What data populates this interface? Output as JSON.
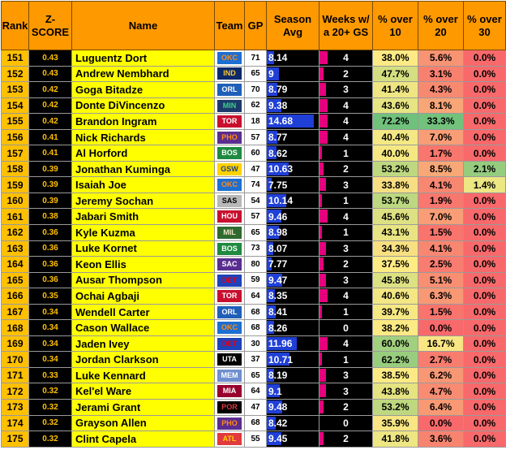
{
  "headers": {
    "rank": "Rank",
    "z": "Z-SCORE",
    "name": "Name",
    "team": "Team",
    "gp": "GP",
    "season_avg": "Season Avg",
    "weeks": "Weeks w/ a 20+ GS",
    "over10": "% over 10",
    "over20": "% over 20",
    "over30": "% over 30"
  },
  "colors": {
    "header_bg": "#ff9900",
    "rank_bg": "#ffc000",
    "name_bg": "#ffff00",
    "z_text": "#ffc000",
    "avg_bar": "#1f3fd6",
    "weeks_mark": "#e6007e"
  },
  "rows": [
    {
      "rank": "151",
      "z": "0.43",
      "name": "Luguentz Dort",
      "team": "OKC",
      "gp": "71",
      "avg": "8.14",
      "weeks": "4",
      "o10": "38.0%",
      "o20": "5.6%",
      "o30": "0.0%"
    },
    {
      "rank": "152",
      "z": "0.43",
      "name": "Andrew Nembhard",
      "team": "IND",
      "gp": "65",
      "avg": "9",
      "weeks": "2",
      "o10": "47.7%",
      "o20": "3.1%",
      "o30": "0.0%"
    },
    {
      "rank": "153",
      "z": "0.42",
      "name": "Goga Bitadze",
      "team": "ORL",
      "gp": "70",
      "avg": "8.79",
      "weeks": "3",
      "o10": "41.4%",
      "o20": "4.3%",
      "o30": "0.0%"
    },
    {
      "rank": "154",
      "z": "0.42",
      "name": "Donte DiVincenzo",
      "team": "MIN",
      "gp": "62",
      "avg": "9.38",
      "weeks": "4",
      "o10": "43.6%",
      "o20": "8.1%",
      "o30": "0.0%"
    },
    {
      "rank": "155",
      "z": "0.42",
      "name": "Brandon Ingram",
      "team": "TOR",
      "gp": "18",
      "avg": "14.68",
      "weeks": "4",
      "o10": "72.2%",
      "o20": "33.3%",
      "o30": "0.0%"
    },
    {
      "rank": "156",
      "z": "0.41",
      "name": "Nick Richards",
      "team": "PHO",
      "gp": "57",
      "avg": "8.77",
      "weeks": "4",
      "o10": "40.4%",
      "o20": "7.0%",
      "o30": "0.0%"
    },
    {
      "rank": "157",
      "z": "0.41",
      "name": "Al Horford",
      "team": "BOS",
      "gp": "60",
      "avg": "8.62",
      "weeks": "1",
      "o10": "40.0%",
      "o20": "1.7%",
      "o30": "0.0%"
    },
    {
      "rank": "158",
      "z": "0.39",
      "name": "Jonathan Kuminga",
      "team": "GSW",
      "gp": "47",
      "avg": "10.63",
      "weeks": "2",
      "o10": "53.2%",
      "o20": "8.5%",
      "o30": "2.1%"
    },
    {
      "rank": "159",
      "z": "0.39",
      "name": "Isaiah Joe",
      "team": "OKC",
      "gp": "74",
      "avg": "7.75",
      "weeks": "3",
      "o10": "33.8%",
      "o20": "4.1%",
      "o30": "1.4%"
    },
    {
      "rank": "160",
      "z": "0.39",
      "name": "Jeremy Sochan",
      "team": "SAS",
      "gp": "54",
      "avg": "10.14",
      "weeks": "1",
      "o10": "53.7%",
      "o20": "1.9%",
      "o30": "0.0%"
    },
    {
      "rank": "161",
      "z": "0.38",
      "name": "Jabari Smith",
      "team": "HOU",
      "gp": "57",
      "avg": "9.46",
      "weeks": "4",
      "o10": "45.6%",
      "o20": "7.0%",
      "o30": "0.0%"
    },
    {
      "rank": "162",
      "z": "0.36",
      "name": "Kyle Kuzma",
      "team": "MIL",
      "gp": "65",
      "avg": "8.98",
      "weeks": "1",
      "o10": "43.1%",
      "o20": "1.5%",
      "o30": "0.0%"
    },
    {
      "rank": "163",
      "z": "0.36",
      "name": "Luke Kornet",
      "team": "BOS",
      "gp": "73",
      "avg": "8.07",
      "weeks": "3",
      "o10": "34.3%",
      "o20": "4.1%",
      "o30": "0.0%"
    },
    {
      "rank": "164",
      "z": "0.36",
      "name": "Keon Ellis",
      "team": "SAC",
      "gp": "80",
      "avg": "7.77",
      "weeks": "2",
      "o10": "37.5%",
      "o20": "2.5%",
      "o30": "0.0%"
    },
    {
      "rank": "165",
      "z": "0.36",
      "name": "Ausar Thompson",
      "team": "DET",
      "gp": "59",
      "avg": "9.47",
      "weeks": "3",
      "o10": "45.8%",
      "o20": "5.1%",
      "o30": "0.0%"
    },
    {
      "rank": "166",
      "z": "0.35",
      "name": "Ochai Agbaji",
      "team": "TOR",
      "gp": "64",
      "avg": "8.35",
      "weeks": "4",
      "o10": "40.6%",
      "o20": "6.3%",
      "o30": "0.0%"
    },
    {
      "rank": "167",
      "z": "0.34",
      "name": "Wendell Carter",
      "team": "ORL",
      "gp": "68",
      "avg": "8.41",
      "weeks": "1",
      "o10": "39.7%",
      "o20": "1.5%",
      "o30": "0.0%"
    },
    {
      "rank": "168",
      "z": "0.34",
      "name": "Cason Wallace",
      "team": "OKC",
      "gp": "68",
      "avg": "8.26",
      "weeks": "0",
      "o10": "38.2%",
      "o20": "0.0%",
      "o30": "0.0%"
    },
    {
      "rank": "169",
      "z": "0.34",
      "name": "Jaden Ivey",
      "team": "DET",
      "gp": "30",
      "avg": "11.96",
      "weeks": "4",
      "o10": "60.0%",
      "o20": "16.7%",
      "o30": "0.0%"
    },
    {
      "rank": "170",
      "z": "0.34",
      "name": "Jordan Clarkson",
      "team": "UTA",
      "gp": "37",
      "avg": "10.71",
      "weeks": "1",
      "o10": "62.2%",
      "o20": "2.7%",
      "o30": "0.0%"
    },
    {
      "rank": "171",
      "z": "0.33",
      "name": "Luke Kennard",
      "team": "MEM",
      "gp": "65",
      "avg": "8.19",
      "weeks": "3",
      "o10": "38.5%",
      "o20": "6.2%",
      "o30": "0.0%"
    },
    {
      "rank": "172",
      "z": "0.32",
      "name": "Kel'el Ware",
      "team": "MIA",
      "gp": "64",
      "avg": "9.1",
      "weeks": "3",
      "o10": "43.8%",
      "o20": "4.7%",
      "o30": "0.0%"
    },
    {
      "rank": "173",
      "z": "0.32",
      "name": "Jerami Grant",
      "team": "POR",
      "gp": "47",
      "avg": "9.48",
      "weeks": "2",
      "o10": "53.2%",
      "o20": "6.4%",
      "o30": "0.0%"
    },
    {
      "rank": "174",
      "z": "0.32",
      "name": "Grayson Allen",
      "team": "PHO",
      "gp": "68",
      "avg": "8.42",
      "weeks": "0",
      "o10": "35.9%",
      "o20": "0.0%",
      "o30": "0.0%"
    },
    {
      "rank": "175",
      "z": "0.32",
      "name": "Clint Capela",
      "team": "ATL",
      "gp": "55",
      "avg": "9.45",
      "weeks": "2",
      "o10": "41.8%",
      "o20": "3.6%",
      "o30": "0.0%"
    }
  ],
  "team_colors": {
    "OKC": {
      "bg": "#1d6fd1",
      "fg": "#ff8c1a"
    },
    "IND": {
      "bg": "#0b2a6b",
      "fg": "#ffc633"
    },
    "ORL": {
      "bg": "#1f5fb8",
      "fg": "#ffffff"
    },
    "MIN": {
      "bg": "#1b3a6b",
      "fg": "#3fd08a"
    },
    "TOR": {
      "bg": "#c8102e",
      "fg": "#ffffff"
    },
    "PHO": {
      "bg": "#5b2d8e",
      "fg": "#ff8c1a"
    },
    "BOS": {
      "bg": "#1f8a3f",
      "fg": "#ffffff"
    },
    "GSW": {
      "bg": "#ffd200",
      "fg": "#1d428a"
    },
    "SAS": {
      "bg": "#b8b8b8",
      "fg": "#000000"
    },
    "HOU": {
      "bg": "#c8102e",
      "fg": "#ffffff"
    },
    "MIL": {
      "bg": "#2f6b2f",
      "fg": "#f0e6c8"
    },
    "SAC": {
      "bg": "#5a2d91",
      "fg": "#ffffff"
    },
    "DET": {
      "bg": "#1d42ba",
      "fg": "#e0001b"
    },
    "UTA": {
      "bg": "#000000",
      "fg": "#ffffff"
    },
    "MEM": {
      "bg": "#6f8fcf",
      "fg": "#ffffff"
    },
    "MIA": {
      "bg": "#98002e",
      "fg": "#ffffff"
    },
    "POR": {
      "bg": "#000000",
      "fg": "#e03a3e"
    },
    "ATL": {
      "bg": "#e03a3e",
      "fg": "#ffd200"
    }
  }
}
